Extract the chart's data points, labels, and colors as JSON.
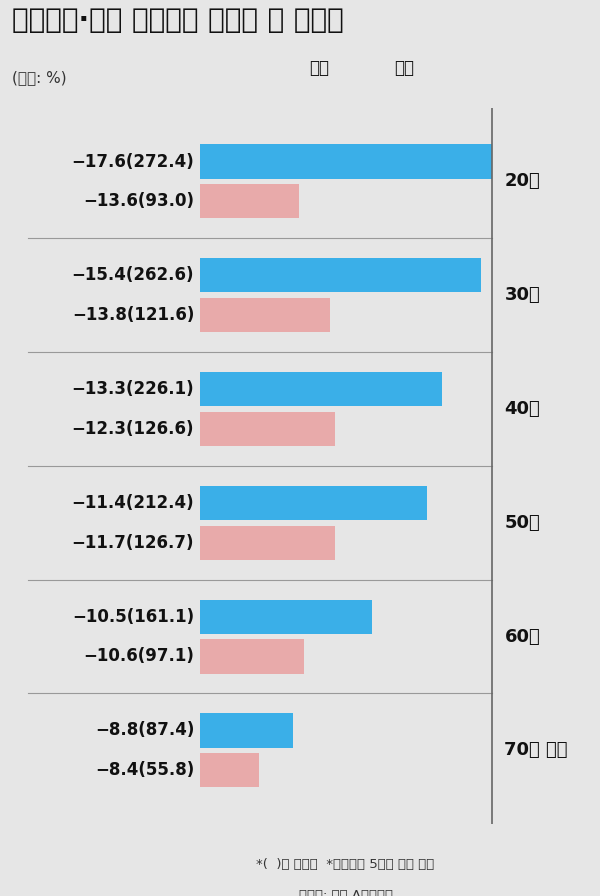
{
  "title": "연령대별·성별 주식투자 수익률 및 회전율",
  "subtitle": "(단위: %)",
  "categories": [
    "20대",
    "30대",
    "40대",
    "50대",
    "60대",
    "70대 이상"
  ],
  "male_values": [
    272.4,
    262.6,
    226.1,
    212.4,
    161.1,
    87.4
  ],
  "female_values": [
    93.0,
    121.6,
    126.6,
    126.7,
    97.1,
    55.8
  ],
  "male_returns": [
    "−17.6",
    "−15.4",
    "−13.3",
    "−11.4",
    "−10.5",
    "−8.8"
  ],
  "female_returns": [
    "−13.6",
    "−13.8",
    "−12.3",
    "−11.7",
    "−10.6",
    "−8.4"
  ],
  "male_color": "#3AAFE8",
  "female_color": "#E8AAAA",
  "bg_color": "#E6E6E6",
  "male_label": "남성",
  "female_label": "여성",
  "footnote1": "*(  )는 회전율  *연초대비 5월말 현재 기준",
  "footnote2": "〈자료: 대형 A증권사〉",
  "bar_max_value": 272.4,
  "label_fontsize": 12,
  "cat_fontsize": 13,
  "title_fontsize": 20
}
